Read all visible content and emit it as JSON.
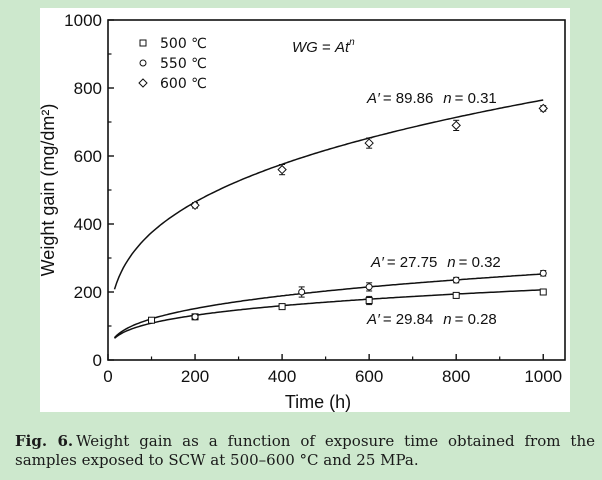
{
  "chart_data": {
    "type": "line",
    "xlabel": "Time (h)",
    "ylabel": "Weight gain (mg/dm²)",
    "xlim": [
      0,
      1050
    ],
    "ylim": [
      0,
      1000
    ],
    "xticks": [
      "0",
      "200",
      "400",
      "600",
      "800",
      "1000"
    ],
    "xtick_values": [
      0,
      200,
      400,
      600,
      800,
      1000
    ],
    "yticks": [
      "0",
      "200",
      "400",
      "600",
      "800",
      "1000"
    ],
    "ytick_values": [
      0,
      200,
      400,
      600,
      800,
      1000
    ],
    "legend_placement": "top-left",
    "series": [
      {
        "name": "500 ℃",
        "marker": "square",
        "x": [
          100,
          200,
          400,
          600,
          800,
          1000
        ],
        "y": [
          117,
          127,
          157,
          175,
          190,
          200
        ],
        "err": [
          8,
          8,
          8,
          12,
          8,
          8
        ],
        "fit": {
          "A": 29.84,
          "n": 0.28
        }
      },
      {
        "name": "550 ℃",
        "marker": "circle",
        "x": [
          200,
          445,
          600,
          800,
          1000
        ],
        "y": [
          127,
          200,
          215,
          235,
          255
        ],
        "err": [
          8,
          15,
          12,
          8,
          8
        ],
        "fit": {
          "A": 27.75,
          "n": 0.32
        }
      },
      {
        "name": "600 ℃",
        "marker": "diamond",
        "x": [
          200,
          400,
          600,
          800,
          1000
        ],
        "y": [
          455,
          560,
          638,
          690,
          740
        ],
        "err": [
          8,
          15,
          15,
          15,
          8
        ],
        "fit": {
          "A": 89.86,
          "n": 0.31
        }
      }
    ]
  },
  "annotations": {
    "equation": {
      "lhs": "WG",
      "eq": " = ",
      "A": "A",
      "t": "t",
      "n": "n"
    },
    "fit_600": {
      "a_label": "A′",
      "a_value": "= 89.86",
      "n_label": "n",
      "n_value": "= 0.31"
    },
    "fit_550": {
      "a_label": "A′",
      "a_value": "= 27.75",
      "n_label": "n",
      "n_value": "= 0.32"
    },
    "fit_500": {
      "a_label": "A′",
      "a_value": "= 29.84",
      "n_label": "n",
      "n_value": "= 0.28"
    }
  },
  "caption": {
    "label": "Fig. 6.",
    "text": "Weight gain as a function of exposure time obtained from the samples exposed to SCW at 500–600 °C and 25 MPa."
  },
  "colors": {
    "background": "#cde8cd",
    "panel": "#ffffff",
    "ink": "#111111"
  }
}
